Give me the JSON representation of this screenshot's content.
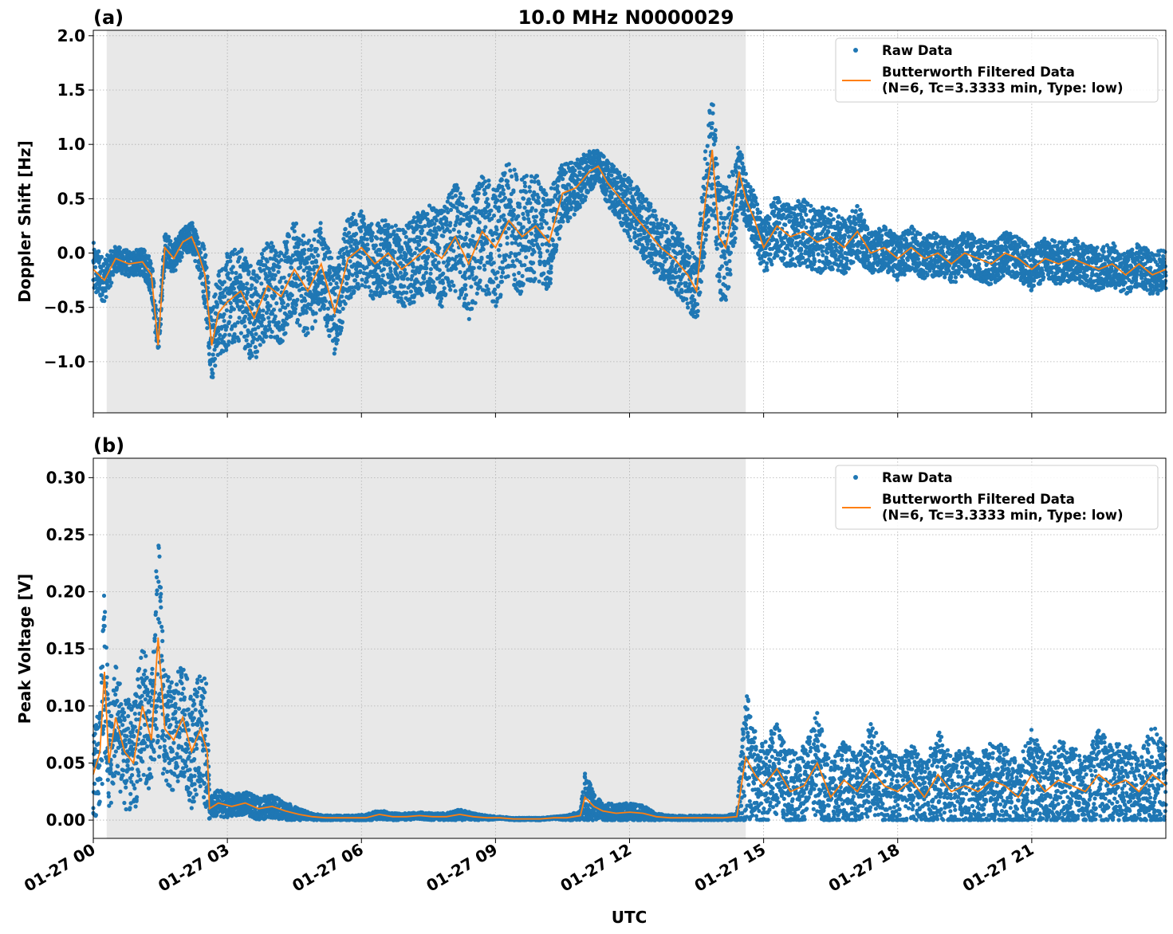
{
  "figure": {
    "title": "10.0 MHz N0000029",
    "xlabel": "UTC",
    "colors": {
      "raw": "#1f77b4",
      "filtered": "#ff7f0e",
      "shade": "#e8e8e8",
      "grid": "#b0b0b0"
    }
  },
  "chart_data": [
    {
      "type": "scatter",
      "panel_label": "(a)",
      "ylabel": "Doppler Shift [Hz]",
      "xlim_hours": [
        0,
        24
      ],
      "ylim": [
        -1.47,
        2.05
      ],
      "x_ticks": [
        "01-27 00",
        "01-27 03",
        "01-27 06",
        "01-27 09",
        "01-27 12",
        "01-27 15",
        "01-27 18",
        "01-27 21"
      ],
      "x_tick_hours": [
        0,
        3,
        6,
        9,
        12,
        15,
        18,
        21
      ],
      "y_ticks": [
        -1.0,
        -0.5,
        0.0,
        0.5,
        1.0,
        1.5,
        2.0
      ],
      "y_tick_labels": [
        "−1.0",
        "−0.5",
        "0.0",
        "0.5",
        "1.0",
        "1.5",
        "2.0"
      ],
      "night_shading_hours": [
        0.3,
        14.6
      ],
      "grid": true,
      "legend": {
        "placement": "top-right",
        "entries": [
          "Raw Data",
          "Butterworth Filtered Data\n(N=6, Tc=3.3333 min, Type: low)"
        ]
      },
      "series": [
        {
          "name": "Butterworth Filtered Data (N=6, Tc=3.3333 min, Type: low)",
          "kind": "line",
          "x": [
            0,
            0.25,
            0.5,
            0.8,
            1.1,
            1.3,
            1.45,
            1.6,
            1.8,
            2.0,
            2.2,
            2.35,
            2.5,
            2.65,
            2.8,
            3.0,
            3.3,
            3.6,
            3.9,
            4.2,
            4.5,
            4.8,
            5.1,
            5.4,
            5.7,
            6.0,
            6.3,
            6.6,
            6.9,
            7.2,
            7.5,
            7.8,
            8.1,
            8.4,
            8.7,
            9.0,
            9.3,
            9.6,
            9.9,
            10.2,
            10.5,
            10.8,
            11.1,
            11.3,
            11.5,
            11.8,
            12.1,
            12.4,
            12.7,
            13.0,
            13.3,
            13.5,
            13.7,
            13.85,
            14.0,
            14.15,
            14.3,
            14.45,
            14.6,
            14.8,
            15.0,
            15.3,
            15.6,
            15.9,
            16.2,
            16.5,
            16.8,
            17.1,
            17.4,
            17.7,
            18.0,
            18.3,
            18.6,
            18.9,
            19.2,
            19.5,
            19.8,
            20.1,
            20.4,
            20.7,
            21.0,
            21.3,
            21.6,
            21.9,
            22.2,
            22.5,
            22.8,
            23.1,
            23.4,
            23.7,
            24.0
          ],
          "y": [
            -0.15,
            -0.25,
            -0.05,
            -0.1,
            -0.08,
            -0.2,
            -0.85,
            0.05,
            -0.05,
            0.1,
            0.15,
            0.0,
            -0.2,
            -0.85,
            -0.55,
            -0.45,
            -0.35,
            -0.6,
            -0.3,
            -0.4,
            -0.15,
            -0.35,
            -0.1,
            -0.55,
            -0.05,
            0.05,
            -0.1,
            0.0,
            -0.15,
            -0.05,
            0.05,
            -0.05,
            0.15,
            -0.1,
            0.2,
            0.05,
            0.3,
            0.15,
            0.25,
            0.1,
            0.55,
            0.6,
            0.75,
            0.8,
            0.65,
            0.5,
            0.35,
            0.2,
            0.05,
            -0.05,
            -0.2,
            -0.35,
            0.5,
            0.95,
            0.15,
            0.05,
            0.35,
            0.75,
            0.5,
            0.3,
            0.05,
            0.25,
            0.15,
            0.2,
            0.1,
            0.15,
            0.05,
            0.2,
            0.0,
            0.05,
            -0.05,
            0.05,
            -0.05,
            0.0,
            -0.1,
            0.0,
            -0.05,
            -0.1,
            0.0,
            -0.05,
            -0.15,
            -0.05,
            -0.1,
            -0.05,
            -0.1,
            -0.15,
            -0.1,
            -0.2,
            -0.1,
            -0.2,
            -0.15
          ]
        },
        {
          "name": "Raw Data",
          "kind": "scatter",
          "note": "dense scatter envelope around the filtered line",
          "x": [
            0,
            0.25,
            0.5,
            0.8,
            1.1,
            1.3,
            1.45,
            1.6,
            1.8,
            2.0,
            2.2,
            2.35,
            2.5,
            2.65,
            2.8,
            3.0,
            3.3,
            3.6,
            3.9,
            4.2,
            4.5,
            4.8,
            5.1,
            5.4,
            5.7,
            6.0,
            6.3,
            6.6,
            6.9,
            7.2,
            7.5,
            7.8,
            8.1,
            8.4,
            8.7,
            9.0,
            9.3,
            9.6,
            9.9,
            10.2,
            10.5,
            10.8,
            11.1,
            11.3,
            11.5,
            11.8,
            12.1,
            12.4,
            12.7,
            13.0,
            13.3,
            13.5,
            13.7,
            13.85,
            14.0,
            14.15,
            14.3,
            14.45,
            14.6,
            14.8,
            15.0,
            15.3,
            15.6,
            15.9,
            16.2,
            16.5,
            16.8,
            17.1,
            17.4,
            17.7,
            18.0,
            18.3,
            18.6,
            18.9,
            19.2,
            19.5,
            19.8,
            20.1,
            20.4,
            20.7,
            21.0,
            21.3,
            21.6,
            21.9,
            22.2,
            22.5,
            22.8,
            23.1,
            23.4,
            23.7,
            24.0
          ],
          "spread": [
            0.25,
            0.2,
            0.12,
            0.12,
            0.12,
            0.18,
            0.15,
            0.15,
            0.15,
            0.12,
            0.15,
            0.15,
            0.3,
            0.35,
            0.4,
            0.45,
            0.45,
            0.45,
            0.45,
            0.45,
            0.45,
            0.45,
            0.4,
            0.4,
            0.4,
            0.35,
            0.35,
            0.35,
            0.35,
            0.4,
            0.4,
            0.45,
            0.5,
            0.55,
            0.55,
            0.55,
            0.55,
            0.55,
            0.5,
            0.45,
            0.3,
            0.25,
            0.2,
            0.15,
            0.2,
            0.25,
            0.3,
            0.3,
            0.3,
            0.3,
            0.3,
            0.3,
            0.45,
            0.6,
            0.55,
            0.55,
            0.45,
            0.3,
            0.25,
            0.25,
            0.25,
            0.3,
            0.3,
            0.3,
            0.3,
            0.3,
            0.25,
            0.25,
            0.2,
            0.2,
            0.2,
            0.2,
            0.2,
            0.2,
            0.2,
            0.2,
            0.2,
            0.2,
            0.2,
            0.2,
            0.2,
            0.2,
            0.2,
            0.2,
            0.2,
            0.2,
            0.2,
            0.2,
            0.2,
            0.2,
            0.2
          ]
        }
      ]
    },
    {
      "type": "scatter",
      "panel_label": "(b)",
      "ylabel": "Peak Voltage [V]",
      "xlim_hours": [
        0,
        24
      ],
      "ylim": [
        -0.016,
        0.317
      ],
      "x_ticks": [
        "01-27 00",
        "01-27 03",
        "01-27 06",
        "01-27 09",
        "01-27 12",
        "01-27 15",
        "01-27 18",
        "01-27 21"
      ],
      "x_tick_hours": [
        0,
        3,
        6,
        9,
        12,
        15,
        18,
        21
      ],
      "y_ticks": [
        0.0,
        0.05,
        0.1,
        0.15,
        0.2,
        0.25,
        0.3
      ],
      "y_tick_labels": [
        "0.00",
        "0.05",
        "0.10",
        "0.15",
        "0.20",
        "0.25",
        "0.30"
      ],
      "night_shading_hours": [
        0.3,
        14.6
      ],
      "grid": true,
      "legend": {
        "placement": "top-right",
        "entries": [
          "Raw Data",
          "Butterworth Filtered Data\n(N=6, Tc=3.3333 min, Type: low)"
        ]
      },
      "series": [
        {
          "name": "Butterworth Filtered Data (N=6, Tc=3.3333 min, Type: low)",
          "kind": "line",
          "x": [
            0,
            0.15,
            0.25,
            0.35,
            0.5,
            0.7,
            0.9,
            1.1,
            1.3,
            1.45,
            1.6,
            1.8,
            2.0,
            2.2,
            2.4,
            2.55,
            2.6,
            2.8,
            3.1,
            3.4,
            3.7,
            4.0,
            4.3,
            4.6,
            4.9,
            5.2,
            5.5,
            5.8,
            6.1,
            6.4,
            6.7,
            7.0,
            7.3,
            7.6,
            7.9,
            8.2,
            8.5,
            8.8,
            9.1,
            9.4,
            9.7,
            10.0,
            10.3,
            10.6,
            10.9,
            11.0,
            11.2,
            11.4,
            11.7,
            12.0,
            12.3,
            12.6,
            12.9,
            13.2,
            13.5,
            13.8,
            14.1,
            14.4,
            14.5,
            14.6,
            14.8,
            15.0,
            15.3,
            15.6,
            15.9,
            16.2,
            16.5,
            16.8,
            17.1,
            17.4,
            17.7,
            18.0,
            18.3,
            18.6,
            18.9,
            19.2,
            19.5,
            19.8,
            20.1,
            20.4,
            20.7,
            21.0,
            21.3,
            21.6,
            21.9,
            22.2,
            22.5,
            22.8,
            23.1,
            23.4,
            23.7,
            24.0
          ],
          "y": [
            0.04,
            0.06,
            0.13,
            0.05,
            0.09,
            0.06,
            0.05,
            0.1,
            0.07,
            0.16,
            0.08,
            0.07,
            0.09,
            0.06,
            0.08,
            0.06,
            0.01,
            0.015,
            0.012,
            0.015,
            0.01,
            0.012,
            0.008,
            0.005,
            0.003,
            0.002,
            0.002,
            0.002,
            0.002,
            0.005,
            0.003,
            0.003,
            0.004,
            0.003,
            0.003,
            0.005,
            0.003,
            0.002,
            0.002,
            0.001,
            0.001,
            0.001,
            0.002,
            0.002,
            0.004,
            0.02,
            0.012,
            0.008,
            0.006,
            0.007,
            0.006,
            0.003,
            0.002,
            0.002,
            0.002,
            0.002,
            0.002,
            0.003,
            0.03,
            0.055,
            0.04,
            0.03,
            0.045,
            0.025,
            0.03,
            0.05,
            0.02,
            0.035,
            0.025,
            0.045,
            0.03,
            0.025,
            0.035,
            0.02,
            0.04,
            0.025,
            0.03,
            0.025,
            0.035,
            0.03,
            0.02,
            0.04,
            0.025,
            0.035,
            0.03,
            0.025,
            0.04,
            0.03,
            0.035,
            0.025,
            0.04,
            0.03
          ]
        },
        {
          "name": "Raw Data",
          "kind": "scatter",
          "note": "dense scatter envelope around the filtered line",
          "x": [
            0,
            0.15,
            0.25,
            0.35,
            0.5,
            0.7,
            0.9,
            1.1,
            1.3,
            1.45,
            1.6,
            1.8,
            2.0,
            2.2,
            2.4,
            2.55,
            2.6,
            2.8,
            3.1,
            3.4,
            3.7,
            4.0,
            4.3,
            4.6,
            4.9,
            5.2,
            5.5,
            5.8,
            6.1,
            6.4,
            6.7,
            7.0,
            7.3,
            7.6,
            7.9,
            8.2,
            8.5,
            8.8,
            9.1,
            9.4,
            9.7,
            10.0,
            10.3,
            10.6,
            10.9,
            11.0,
            11.2,
            11.4,
            11.7,
            12.0,
            12.3,
            12.6,
            12.9,
            13.2,
            13.5,
            13.8,
            14.1,
            14.4,
            14.5,
            14.6,
            14.8,
            15.0,
            15.3,
            15.6,
            15.9,
            16.2,
            16.5,
            16.8,
            17.1,
            17.4,
            17.7,
            18.0,
            18.3,
            18.6,
            18.9,
            19.2,
            19.5,
            19.8,
            20.1,
            20.4,
            20.7,
            21.0,
            21.3,
            21.6,
            21.9,
            22.2,
            22.5,
            22.8,
            23.1,
            23.4,
            23.7,
            24.0
          ],
          "spread": [
            0.04,
            0.05,
            0.08,
            0.05,
            0.05,
            0.05,
            0.05,
            0.06,
            0.05,
            0.1,
            0.05,
            0.05,
            0.05,
            0.05,
            0.05,
            0.06,
            0.01,
            0.012,
            0.01,
            0.01,
            0.01,
            0.01,
            0.008,
            0.005,
            0.003,
            0.002,
            0.002,
            0.002,
            0.003,
            0.004,
            0.003,
            0.003,
            0.003,
            0.003,
            0.003,
            0.005,
            0.003,
            0.002,
            0.001,
            0.001,
            0.001,
            0.001,
            0.001,
            0.002,
            0.004,
            0.025,
            0.012,
            0.008,
            0.008,
            0.008,
            0.007,
            0.003,
            0.002,
            0.002,
            0.002,
            0.002,
            0.002,
            0.003,
            0.04,
            0.06,
            0.04,
            0.04,
            0.04,
            0.035,
            0.035,
            0.045,
            0.03,
            0.035,
            0.03,
            0.04,
            0.035,
            0.03,
            0.035,
            0.03,
            0.04,
            0.03,
            0.035,
            0.03,
            0.035,
            0.035,
            0.03,
            0.04,
            0.03,
            0.035,
            0.035,
            0.03,
            0.04,
            0.035,
            0.035,
            0.03,
            0.045,
            0.035
          ]
        }
      ]
    }
  ]
}
